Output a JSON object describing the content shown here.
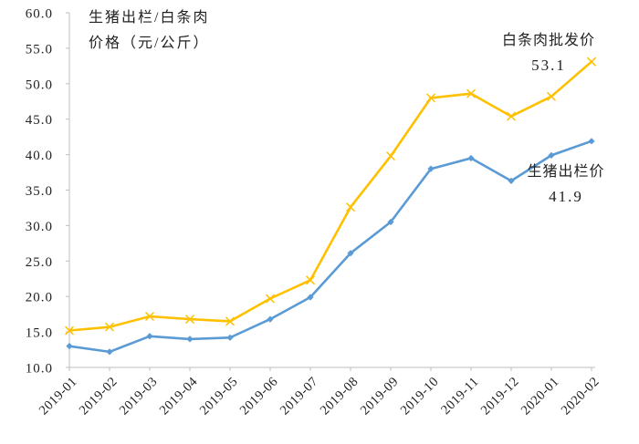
{
  "chart_data": {
    "type": "line",
    "title_line1": "生猪出栏/白条肉",
    "title_line2": "价格（元/公斤）",
    "ylabel": "元/公斤",
    "categories": [
      "2019-01",
      "2019-02",
      "2019-03",
      "2019-04",
      "2019-05",
      "2019-06",
      "2019-07",
      "2019-08",
      "2019-09",
      "2019-10",
      "2019-11",
      "2019-12",
      "2020-01",
      "2020-02"
    ],
    "series": [
      {
        "name": "白条肉批发价",
        "marker": "x",
        "color": "#FFC000",
        "values": [
          15.2,
          15.7,
          17.2,
          16.8,
          16.5,
          19.7,
          22.3,
          32.6,
          39.8,
          48.0,
          48.6,
          45.4,
          48.2,
          53.1
        ],
        "end_label": "53.1"
      },
      {
        "name": "生猪出栏价",
        "marker": "diamond",
        "color": "#5B9BD5",
        "values": [
          13.0,
          12.2,
          14.4,
          14.0,
          14.2,
          16.8,
          19.9,
          26.1,
          30.5,
          38.0,
          39.5,
          36.3,
          39.9,
          41.9
        ],
        "end_label": "41.9"
      }
    ],
    "ylim": [
      10,
      60
    ],
    "ytick_step": 5,
    "ytick_format_decimals": 1,
    "grid": false,
    "legend_position": "inline-annotations",
    "axis_color": "#BFBFBF",
    "text_color": "#222222"
  }
}
